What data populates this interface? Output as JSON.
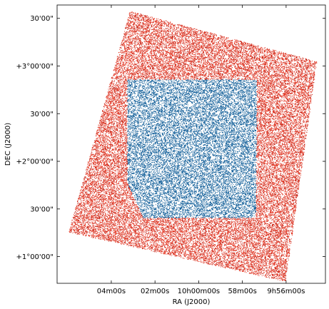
{
  "chart_data": {
    "type": "scatter",
    "xlabel": "RA (J2000)",
    "ylabel": "DEC (J2000)",
    "x_ticks": [
      {
        "value": 151.0,
        "label": "04m00s"
      },
      {
        "value": 150.5,
        "label": "02m00s"
      },
      {
        "value": 150.0,
        "label": "10h00m00s"
      },
      {
        "value": 149.5,
        "label": "58m00s"
      },
      {
        "value": 149.0,
        "label": "9h56m00s"
      }
    ],
    "y_ticks": [
      {
        "value": 1.0,
        "label": "+1°00'00\""
      },
      {
        "value": 1.5,
        "label": "30'00\""
      },
      {
        "value": 2.0,
        "label": "+2°00'00\""
      },
      {
        "value": 2.5,
        "label": "30'00\""
      },
      {
        "value": 3.0,
        "label": "+3°00'00\""
      },
      {
        "value": 3.5,
        "label": "30'00\""
      }
    ],
    "xlim": [
      151.62,
      148.55
    ],
    "ylim": [
      0.72,
      3.64
    ],
    "x_inverted": true,
    "grid": false,
    "series": [
      {
        "color": "#e3321f",
        "region_corners": [
          [
            150.79,
            3.58
          ],
          [
            148.65,
            3.05
          ],
          [
            149.01,
            0.74
          ],
          [
            151.49,
            1.26
          ]
        ],
        "density": "dense"
      },
      {
        "color": "#0b5a96",
        "region_corners": [
          [
            150.82,
            2.86
          ],
          [
            149.34,
            2.86
          ],
          [
            149.34,
            2.53
          ],
          [
            149.35,
            1.41
          ],
          [
            150.64,
            1.41
          ],
          [
            150.82,
            1.78
          ]
        ],
        "density": "dense"
      }
    ]
  }
}
